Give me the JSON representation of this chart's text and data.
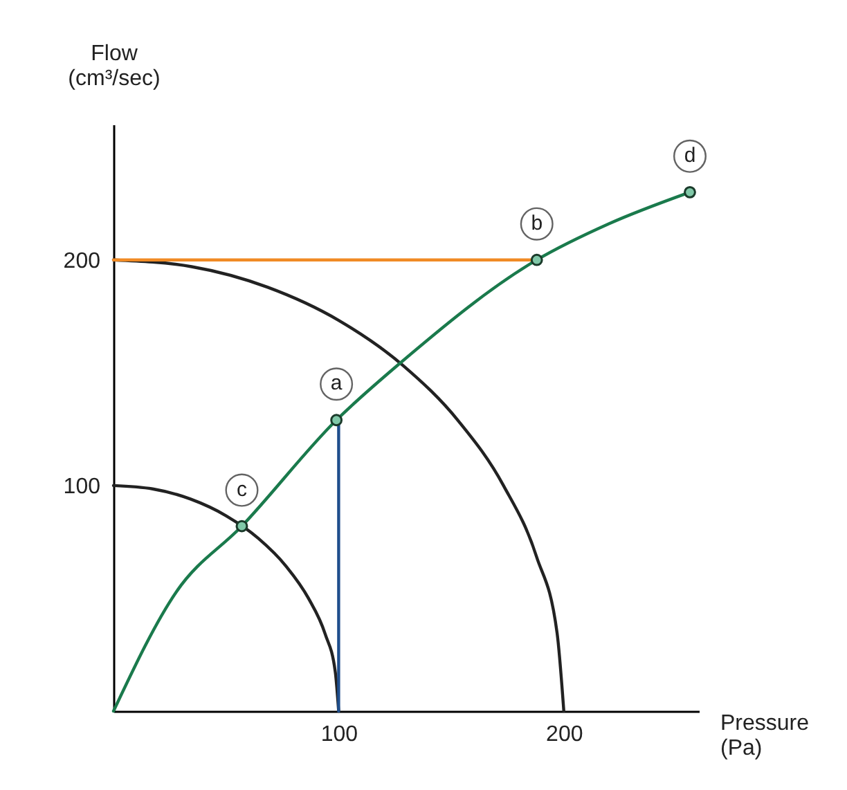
{
  "chart_data": {
    "type": "line",
    "xlabel": "Pressure\n(Pa)",
    "ylabel": "Flow\n(cm³/sec)",
    "xlim": [
      0,
      260
    ],
    "ylim": [
      0,
      260
    ],
    "xticks": [
      100,
      200
    ],
    "yticks": [
      100,
      200
    ],
    "series": [
      {
        "color": "#222222",
        "x": [
          0,
          17.4,
          34.2,
          50,
          64.3,
          76.6,
          86.6,
          94,
          98.5,
          100
        ],
        "values": [
          100,
          98.5,
          94,
          86.6,
          76.6,
          64.3,
          50,
          34.2,
          17.4,
          0
        ]
      },
      {
        "color": "#222222",
        "x": [
          0,
          34.7,
          68.4,
          100,
          128.6,
          153.2,
          173.2,
          187.9,
          197,
          200
        ],
        "values": [
          200,
          197,
          187.9,
          173.2,
          153.2,
          128.6,
          100,
          68.4,
          34.7,
          0
        ]
      },
      {
        "color": "#f08a24",
        "x": [
          0,
          188
        ],
        "values": [
          200,
          200
        ]
      },
      {
        "color": "#1f4e8c",
        "x": [
          100,
          100
        ],
        "values": [
          0,
          129
        ]
      },
      {
        "color": "#1a7a4c",
        "x": [
          0,
          28,
          57,
          99,
          127,
          188,
          220,
          256
        ],
        "values": [
          0,
          53,
          82,
          129,
          154,
          200,
          216,
          230
        ]
      },
      {
        "type": "scatter",
        "color": "#80c8a8",
        "x": [
          57,
          99,
          188,
          256
        ],
        "values": [
          82,
          129,
          200,
          230
        ]
      }
    ],
    "annotations": [
      {
        "text": "a",
        "x": 99,
        "y": 129
      },
      {
        "text": "b",
        "x": 188,
        "y": 200
      },
      {
        "text": "c",
        "x": 57,
        "y": 82
      },
      {
        "text": "d",
        "x": 256,
        "y": 230
      }
    ]
  }
}
